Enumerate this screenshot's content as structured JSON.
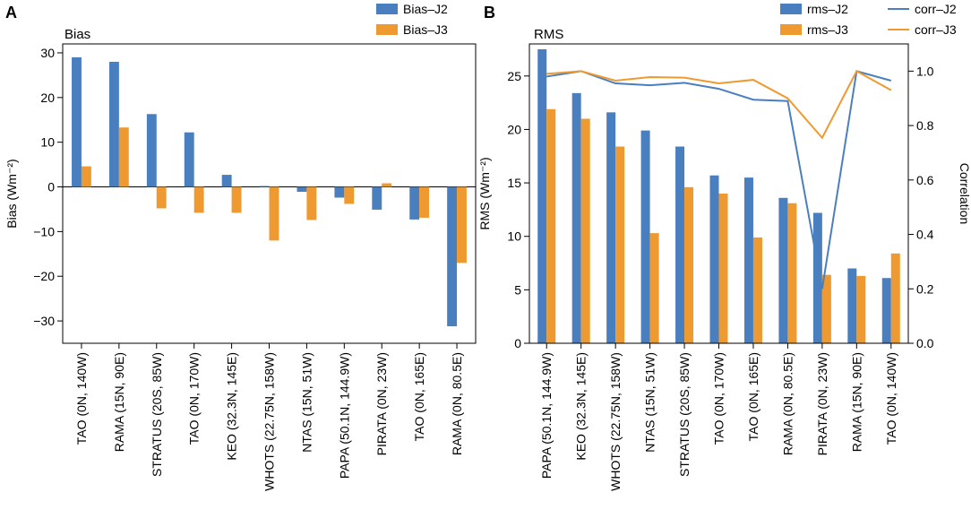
{
  "chart_data": [
    {
      "panel_label": "A",
      "type": "bar",
      "title": "Bias",
      "ylabel": "Bias (Wm⁻²)",
      "ylim": [
        -35,
        32
      ],
      "yticks": [
        30,
        20,
        10,
        0,
        -10,
        -20,
        -30
      ],
      "ytick_labels": [
        "30",
        "20",
        "10",
        "0",
        "−10",
        "−20",
        "−30"
      ],
      "categories": [
        "TAO (0N, 140W)",
        "RAMA (15N, 90E)",
        "STRATUS (20S, 85W)",
        "TAO (0N, 170W)",
        "KEO (32.3N, 145E)",
        "WHOTS (22.75N, 158W)",
        "NTAS (15N, 51W)",
        "PAPA (50.1N, 144.9W)",
        "PIRATA (0N, 23W)",
        "TAO (0N, 165E)",
        "RAMA (0N, 80.5E)"
      ],
      "series": [
        {
          "name": "Bias–J2",
          "color": "#4a7fbf",
          "values": [
            29,
            28,
            16.3,
            12.2,
            2.7,
            0.2,
            -1.1,
            -2.4,
            -5.1,
            -7.3,
            -31.2
          ]
        },
        {
          "name": "Bias–J3",
          "color": "#ef9a30",
          "values": [
            4.6,
            13.3,
            -4.8,
            -5.8,
            -5.8,
            -12,
            -7.4,
            -3.8,
            0.8,
            -6.9,
            -17
          ]
        }
      ],
      "legend": "top-right"
    },
    {
      "panel_label": "B",
      "type": "bar",
      "title": "RMS",
      "ylabel": "RMS (Wm⁻²)",
      "ylim": [
        0,
        28
      ],
      "yticks": [
        0,
        5,
        10,
        15,
        20,
        25
      ],
      "ytick_labels": [
        "0",
        "5",
        "10",
        "15",
        "20",
        "25"
      ],
      "y2label": "Correlation",
      "y2lim": [
        0,
        1.1
      ],
      "y2ticks": [
        0,
        0.2,
        0.4,
        0.6,
        0.8,
        1
      ],
      "y2tick_labels": [
        "0.0",
        "0.2",
        "0.4",
        "0.6",
        "0.8",
        "1.0"
      ],
      "categories": [
        "PAPA (50.1N, 144.9W)",
        "KEO (32.3N, 145E)",
        "WHOTS (22.75N, 158W)",
        "NTAS (15N, 51W)",
        "STRATUS (20S, 85W)",
        "TAO (0N, 170W)",
        "TAO (0N, 165E)",
        "RAMA (0N, 80.5E)",
        "PIRATA (0N, 23W)",
        "RAMA (15N, 90E)",
        "TAO (0N, 140W)"
      ],
      "series": [
        {
          "name": "rms–J2",
          "color": "#4a7fbf",
          "values": [
            27.5,
            23.4,
            21.6,
            19.9,
            18.4,
            15.7,
            15.5,
            13.6,
            12.2,
            7,
            6.1
          ]
        },
        {
          "name": "rms–J3",
          "color": "#ef9a30",
          "values": [
            21.9,
            21,
            18.4,
            10.3,
            14.6,
            14,
            9.9,
            13.1,
            6.4,
            6.3,
            8.4
          ]
        }
      ],
      "lines": [
        {
          "name": "corr–J2",
          "color": "#4a7fbf",
          "axis": "right",
          "values": [
            0.98,
            1.0,
            0.955,
            0.948,
            0.957,
            0.935,
            0.895,
            0.89,
            0.2,
            1.0,
            0.965
          ]
        },
        {
          "name": "corr–J3",
          "color": "#ef9a30",
          "axis": "right",
          "values": [
            0.99,
            1.0,
            0.965,
            0.978,
            0.976,
            0.955,
            0.968,
            0.9,
            0.755,
            1.0,
            0.93
          ]
        }
      ],
      "legend": "top-right"
    }
  ]
}
